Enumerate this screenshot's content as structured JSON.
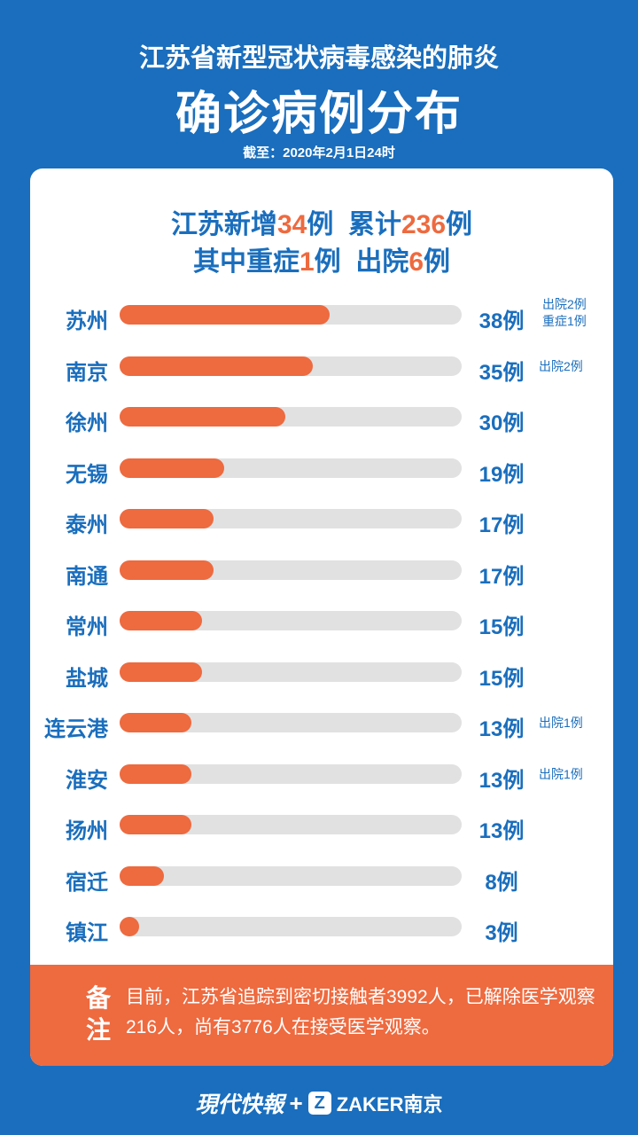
{
  "header": {
    "title_line1": "江苏省新型冠状病毒感染的肺炎",
    "title_line2": "确诊病例分布",
    "as_of": "截至：2020年2月1日24时"
  },
  "summary": {
    "line1": [
      {
        "text": "江苏新增",
        "hl": false
      },
      {
        "text": "34",
        "hl": true
      },
      {
        "text": "例  累计",
        "hl": false
      },
      {
        "text": "236",
        "hl": true
      },
      {
        "text": "例",
        "hl": false
      }
    ],
    "line2": [
      {
        "text": "其中重症",
        "hl": false
      },
      {
        "text": "1",
        "hl": true
      },
      {
        "text": "例  出院",
        "hl": false
      },
      {
        "text": "6",
        "hl": true
      },
      {
        "text": "例",
        "hl": false
      }
    ]
  },
  "chart_data": {
    "type": "bar",
    "orientation": "horizontal",
    "categories": [
      "苏州",
      "南京",
      "徐州",
      "无锡",
      "泰州",
      "南通",
      "常州",
      "盐城",
      "连云港",
      "淮安",
      "扬州",
      "宿迁",
      "镇江"
    ],
    "values": [
      38,
      35,
      30,
      19,
      17,
      17,
      15,
      15,
      13,
      13,
      13,
      8,
      3
    ],
    "value_labels": [
      "38例",
      "35例",
      "30例",
      "19例",
      "17例",
      "17例",
      "15例",
      "15例",
      "13例",
      "13例",
      "13例",
      "8例",
      "3例"
    ],
    "notes": [
      [
        "出院2例",
        "重症1例"
      ],
      [
        "出院2例"
      ],
      [],
      [],
      [],
      [],
      [],
      [],
      [
        "出院1例"
      ],
      [
        "出院1例"
      ],
      [],
      [],
      []
    ],
    "xlim": [
      0,
      62
    ]
  },
  "footer": {
    "label": "备注",
    "text": "目前，江苏省追踪到密切接触者3992人，已解除医学观察216人，尚有3776人在接受医学观察。"
  },
  "brand": {
    "name1": "現代快報",
    "plus": "+",
    "z_logo": "Z",
    "name2": "ZAKER南京"
  },
  "colors": {
    "background": "#1a6ebd",
    "accent": "#ee6a3f",
    "track": "#e1e1e1"
  }
}
